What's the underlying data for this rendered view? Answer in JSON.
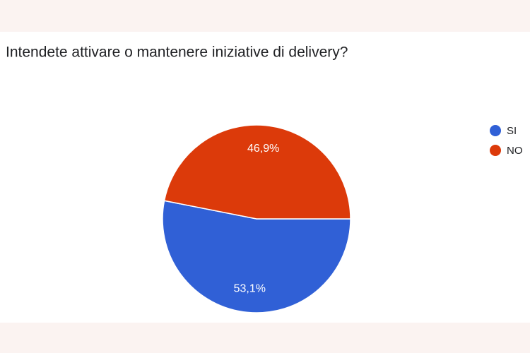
{
  "chart_data": {
    "type": "pie",
    "title": "Intendete attivare o mantenere iniziative di delivery?",
    "categories": [
      "SI",
      "NO"
    ],
    "values": [
      53.1,
      46.9
    ],
    "value_labels": [
      "53,1%",
      "46,9%"
    ],
    "colors": [
      "#3060d6",
      "#dc3a0a"
    ],
    "legend": "right"
  }
}
